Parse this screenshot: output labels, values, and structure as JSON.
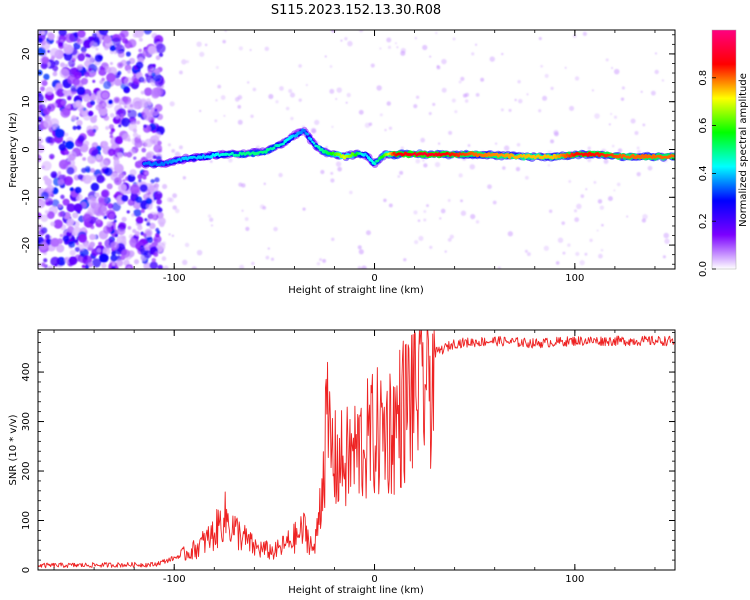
{
  "title": "S115.2023.152.13.30.R08",
  "chart_data": [
    {
      "type": "heatmap",
      "xlabel": "Height of straight line (km)",
      "ylabel": "Frequency (Hz)",
      "xlim": [
        -168,
        150
      ],
      "ylim": [
        -25,
        25
      ],
      "x_ticks": [
        -100,
        0,
        100
      ],
      "y_ticks": [
        -20,
        -10,
        0,
        10,
        20
      ],
      "grid": false,
      "colorbar": {
        "label": "Normalized spectral amplitude",
        "range": [
          0,
          1
        ],
        "ticks": [
          0.0,
          0.2,
          0.4,
          0.6,
          0.8
        ],
        "colors": [
          "#ffffff",
          "#7b00ff",
          "#0000ff",
          "#00ffff",
          "#00ff00",
          "#ffff00",
          "#ff0000",
          "#ff0080"
        ]
      },
      "ridge": {
        "x": [
          -115,
          -105,
          -95,
          -85,
          -75,
          -65,
          -55,
          -45,
          -40,
          -35,
          -30,
          -25,
          -20,
          -15,
          -10,
          -5,
          0,
          5,
          10,
          25,
          50,
          75,
          90,
          100,
          110,
          125,
          150
        ],
        "y": [
          -3,
          -3,
          -2,
          -1.5,
          -1,
          -1,
          -0.5,
          1.5,
          3,
          4,
          1,
          -0.5,
          -1,
          -1.5,
          -1,
          -1,
          -3,
          -1,
          -1,
          -1,
          -1,
          -1.5,
          -1.5,
          -1,
          -1,
          -1.5,
          -1.5
        ],
        "amplitude": [
          0.35,
          0.35,
          0.4,
          0.4,
          0.45,
          0.5,
          0.5,
          0.45,
          0.4,
          0.35,
          0.45,
          0.5,
          0.6,
          0.7,
          0.6,
          0.4,
          0.45,
          0.6,
          0.85,
          0.9,
          0.8,
          0.75,
          0.75,
          0.85,
          0.85,
          0.8,
          0.8
        ]
      }
    },
    {
      "type": "line",
      "xlabel": "Height of straight line (km)",
      "ylabel": "SNR (10 * v/v)",
      "xlim": [
        -168,
        150
      ],
      "ylim": [
        0,
        485
      ],
      "x_ticks": [
        -100,
        0,
        100
      ],
      "y_ticks": [
        0,
        100,
        200,
        300,
        400
      ],
      "grid": false,
      "color": "#ee2222",
      "envelope": {
        "x": [
          -168,
          -110,
          -100,
          -90,
          -80,
          -75,
          -70,
          -60,
          -50,
          -40,
          -35,
          -30,
          -26,
          -24,
          -22,
          -20,
          -15,
          -10,
          -5,
          0,
          5,
          10,
          15,
          20,
          25,
          30,
          40,
          60,
          80,
          100,
          120,
          150
        ],
        "y": [
          10,
          12,
          25,
          45,
          80,
          120,
          90,
          50,
          40,
          70,
          90,
          40,
          200,
          320,
          280,
          240,
          240,
          260,
          280,
          300,
          310,
          320,
          360,
          400,
          420,
          440,
          460,
          465,
          460,
          465,
          465,
          465
        ]
      }
    }
  ]
}
